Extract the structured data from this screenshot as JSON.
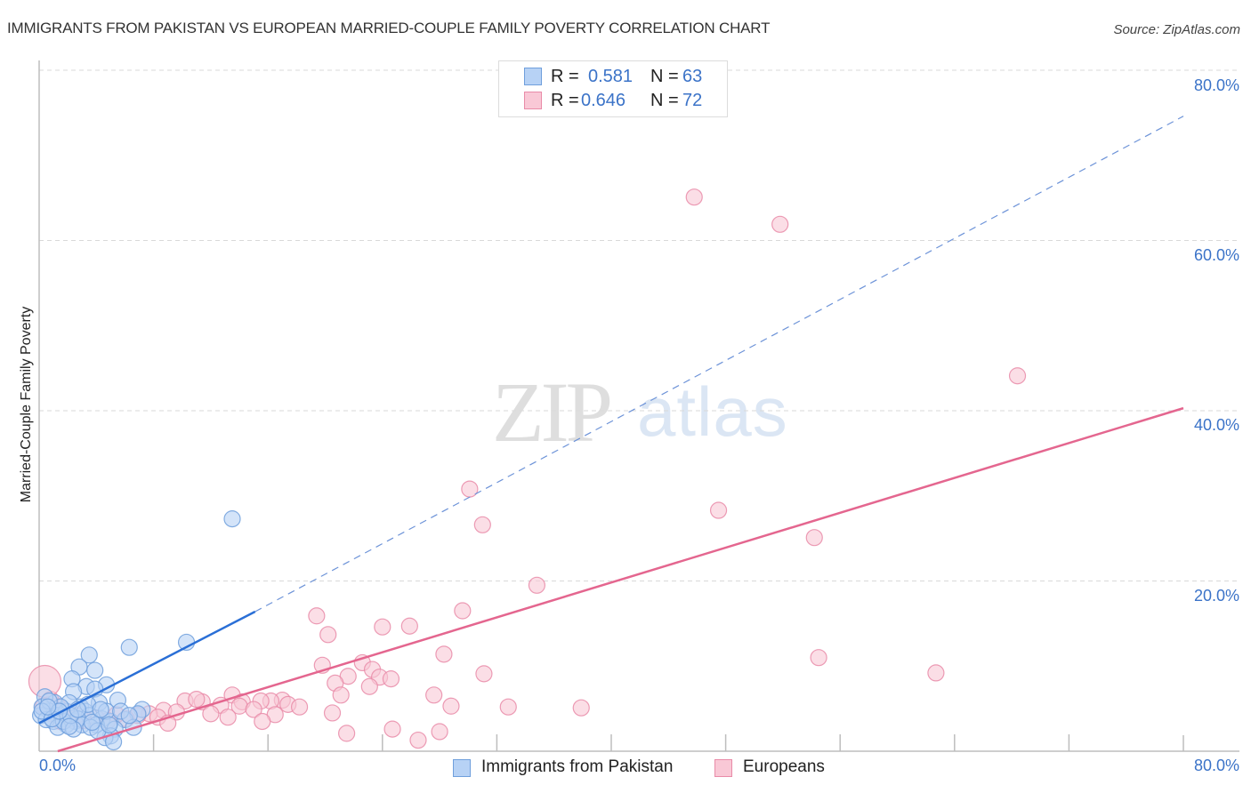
{
  "header": {
    "title": "IMMIGRANTS FROM PAKISTAN VS EUROPEAN MARRIED-COUPLE FAMILY POVERTY CORRELATION CHART",
    "source": "Source: ZipAtlas.com"
  },
  "watermark": {
    "zip": "ZIP",
    "atlas": "atlas"
  },
  "stats_box": {
    "rows": [
      {
        "r_label": "R =",
        "r_value": "0.581",
        "n_label": "N =",
        "n_value": "63",
        "color": "#b7d2f5",
        "border": "#6f9fdc"
      },
      {
        "r_label": "R =",
        "r_value": "0.646",
        "n_label": "N =",
        "n_value": "72",
        "color": "#f9c8d6",
        "border": "#e98ba8"
      }
    ]
  },
  "legend": {
    "items": [
      {
        "label": "Immigrants from Pakistan",
        "color": "#b7d2f5",
        "border": "#6f9fdc"
      },
      {
        "label": "Europeans",
        "color": "#f9c8d6",
        "border": "#e98ba8"
      }
    ]
  },
  "axes": {
    "y_label": "Married-Couple Family Poverty",
    "y_ticks": [
      "80.0%",
      "60.0%",
      "40.0%",
      "20.0%"
    ],
    "x_tick_left": "0.0%",
    "x_tick_right": "80.0%"
  },
  "chart_data": {
    "type": "scatter",
    "title": "IMMIGRANTS FROM PAKISTAN VS EUROPEAN MARRIED-COUPLE FAMILY POVERTY CORRELATION CHART",
    "xlabel": "",
    "ylabel": "Married-Couple Family Poverty",
    "xlim": [
      0,
      80
    ],
    "ylim": [
      0,
      80
    ],
    "x_ticks": [
      0,
      80
    ],
    "y_ticks": [
      20,
      40,
      60,
      80
    ],
    "grid": true,
    "legend_position": "bottom",
    "series": [
      {
        "name": "Immigrants from Pakistan",
        "color": "#6f9fdc",
        "fill": "#b7d2f5",
        "R": 0.581,
        "N": 63,
        "trend": {
          "x0": 0,
          "y0": 3.3,
          "x_solid_end": 15.1,
          "y_solid_end": 16.4,
          "x1": 80,
          "y1": 74.6
        },
        "points": [
          [
            13.5,
            27.3
          ],
          [
            10.3,
            12.8
          ],
          [
            6.3,
            12.2
          ],
          [
            3.5,
            11.3
          ],
          [
            2.8,
            9.9
          ],
          [
            3.9,
            9.5
          ],
          [
            2.3,
            8.5
          ],
          [
            4.7,
            7.8
          ],
          [
            3.3,
            7.6
          ],
          [
            3.9,
            7.3
          ],
          [
            2.4,
            7.0
          ],
          [
            5.5,
            6.0
          ],
          [
            7.2,
            4.9
          ],
          [
            6.9,
            4.4
          ],
          [
            4.2,
            5.7
          ],
          [
            2.9,
            5.2
          ],
          [
            1.1,
            5.7
          ],
          [
            0.4,
            6.4
          ],
          [
            0.7,
            4.7
          ],
          [
            1.6,
            3.8
          ],
          [
            2.5,
            3.5
          ],
          [
            0.1,
            4.2
          ],
          [
            1.3,
            4.2
          ],
          [
            0.2,
            5.2
          ],
          [
            1.9,
            4.7
          ],
          [
            3.2,
            4.7
          ],
          [
            3.5,
            4.2
          ],
          [
            4.4,
            3.8
          ],
          [
            5.0,
            3.5
          ],
          [
            4.0,
            3.1
          ],
          [
            4.7,
            4.7
          ],
          [
            6.0,
            3.7
          ],
          [
            6.6,
            2.8
          ],
          [
            5.3,
            2.6
          ],
          [
            5.0,
            1.8
          ],
          [
            4.6,
            1.6
          ],
          [
            5.2,
            1.1
          ],
          [
            1.9,
            3.1
          ],
          [
            1.0,
            3.5
          ],
          [
            2.7,
            3.8
          ],
          [
            2.1,
            5.7
          ],
          [
            0.5,
            3.7
          ],
          [
            1.5,
            5.2
          ],
          [
            3.0,
            3.1
          ],
          [
            3.6,
            2.8
          ],
          [
            1.3,
            2.8
          ],
          [
            0.7,
            5.9
          ],
          [
            1.7,
            3.5
          ],
          [
            2.4,
            2.6
          ],
          [
            4.1,
            2.4
          ],
          [
            0.2,
            4.7
          ],
          [
            0.9,
            3.8
          ],
          [
            2.2,
            4.2
          ],
          [
            3.4,
            5.5
          ],
          [
            3.7,
            3.4
          ],
          [
            4.3,
            4.9
          ],
          [
            4.9,
            3.1
          ],
          [
            5.7,
            4.7
          ],
          [
            6.3,
            4.2
          ],
          [
            1.4,
            4.7
          ],
          [
            2.7,
            4.9
          ],
          [
            2.1,
            2.9
          ],
          [
            0.6,
            5.2
          ]
        ]
      },
      {
        "name": "Europeans",
        "color": "#e98ba8",
        "fill": "#f9c8d6",
        "R": 0.646,
        "N": 72,
        "trend": {
          "x0": 1.3,
          "y0": 0.0,
          "x1": 80,
          "y1": 40.3
        },
        "points": [
          [
            45.8,
            65.1
          ],
          [
            51.8,
            61.9
          ],
          [
            68.4,
            44.1
          ],
          [
            30.1,
            30.8
          ],
          [
            31.0,
            26.6
          ],
          [
            47.5,
            28.3
          ],
          [
            54.2,
            25.1
          ],
          [
            34.8,
            19.5
          ],
          [
            29.6,
            16.5
          ],
          [
            19.4,
            15.9
          ],
          [
            20.2,
            13.7
          ],
          [
            24.0,
            14.6
          ],
          [
            25.9,
            14.7
          ],
          [
            28.3,
            11.4
          ],
          [
            54.5,
            11.0
          ],
          [
            19.8,
            10.1
          ],
          [
            22.6,
            10.4
          ],
          [
            23.3,
            9.6
          ],
          [
            21.6,
            8.8
          ],
          [
            23.8,
            8.7
          ],
          [
            24.6,
            8.5
          ],
          [
            31.1,
            9.1
          ],
          [
            62.7,
            9.2
          ],
          [
            20.7,
            8.0
          ],
          [
            23.1,
            7.6
          ],
          [
            27.6,
            6.6
          ],
          [
            21.1,
            6.6
          ],
          [
            13.5,
            6.6
          ],
          [
            32.8,
            5.2
          ],
          [
            28.8,
            5.3
          ],
          [
            37.9,
            5.1
          ],
          [
            17.0,
            6.0
          ],
          [
            17.4,
            5.5
          ],
          [
            16.2,
            5.9
          ],
          [
            15.5,
            5.9
          ],
          [
            14.2,
            5.8
          ],
          [
            11.4,
            5.8
          ],
          [
            10.2,
            5.9
          ],
          [
            11.0,
            6.1
          ],
          [
            12.7,
            5.4
          ],
          [
            14.0,
            5.3
          ],
          [
            15.0,
            4.9
          ],
          [
            16.5,
            4.3
          ],
          [
            18.2,
            5.2
          ],
          [
            12.0,
            4.4
          ],
          [
            13.2,
            4.0
          ],
          [
            15.6,
            3.5
          ],
          [
            8.7,
            4.8
          ],
          [
            9.6,
            4.6
          ],
          [
            7.7,
            4.4
          ],
          [
            8.3,
            4.0
          ],
          [
            6.9,
            4.2
          ],
          [
            6.1,
            3.8
          ],
          [
            5.4,
            4.3
          ],
          [
            4.8,
            3.6
          ],
          [
            4.0,
            3.9
          ],
          [
            3.1,
            3.6
          ],
          [
            2.6,
            4.2
          ],
          [
            1.9,
            4.6
          ],
          [
            1.3,
            5.3
          ],
          [
            0.8,
            6.1
          ],
          [
            0.4,
            8.2
          ],
          [
            0.9,
            4.4
          ],
          [
            0.3,
            5.3
          ],
          [
            1.5,
            3.5
          ],
          [
            2.2,
            3.8
          ],
          [
            24.7,
            2.6
          ],
          [
            21.5,
            2.1
          ],
          [
            26.5,
            1.3
          ],
          [
            28.0,
            2.3
          ],
          [
            20.5,
            4.5
          ],
          [
            9.0,
            3.3
          ]
        ]
      }
    ]
  }
}
